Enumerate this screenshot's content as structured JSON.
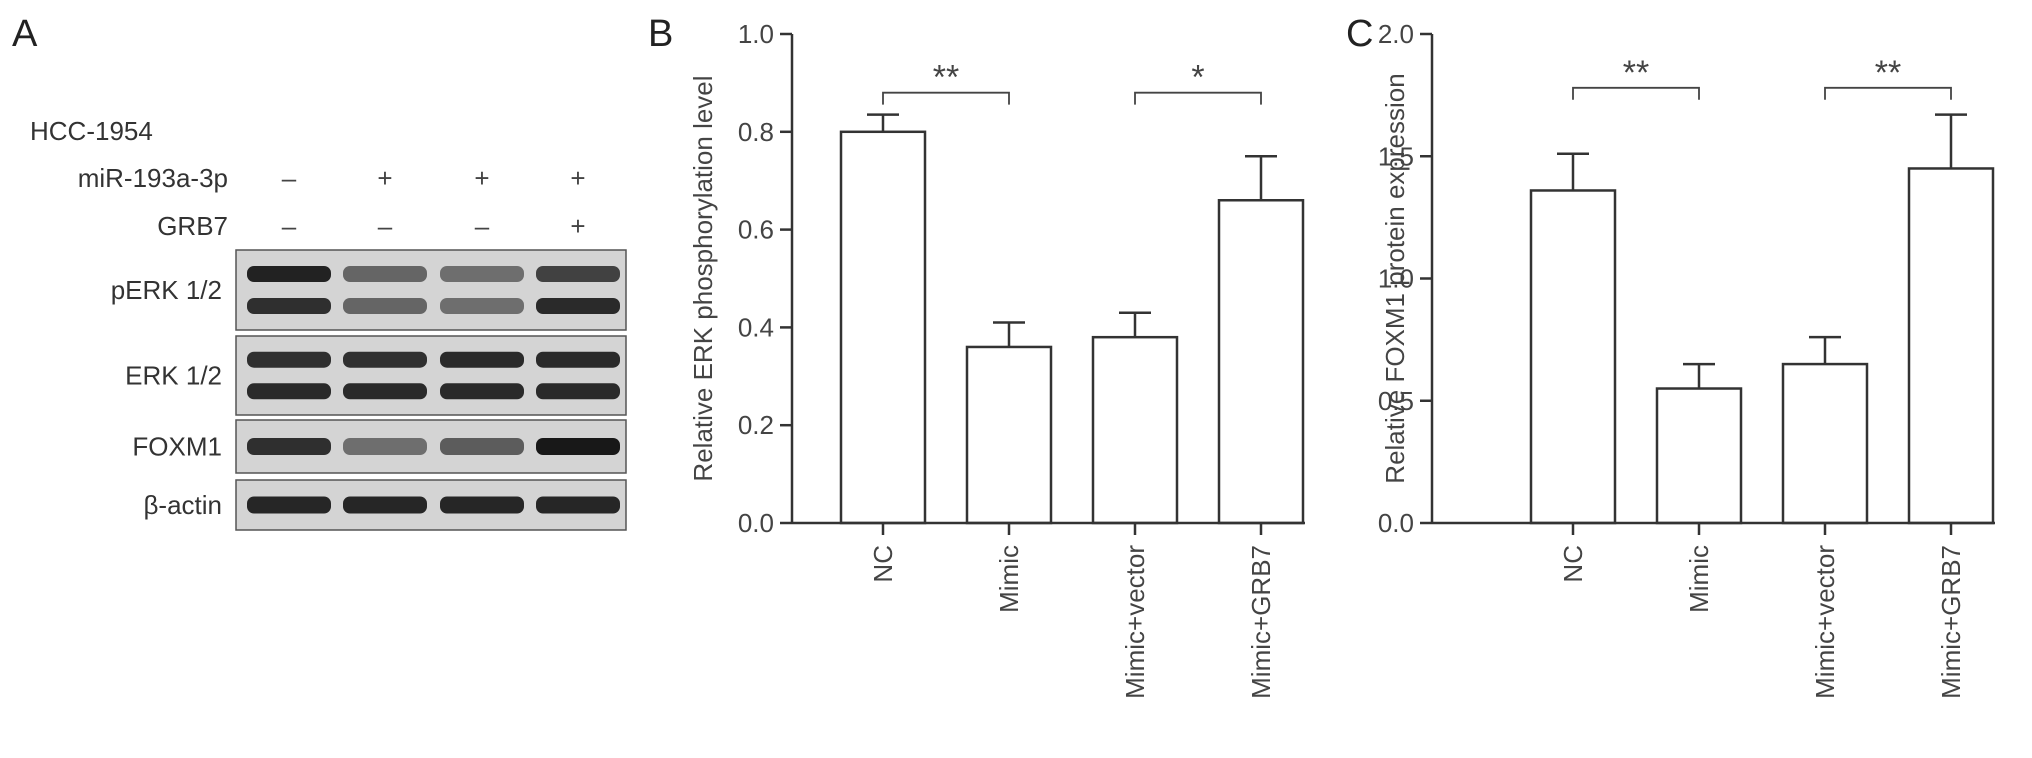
{
  "panel_a": {
    "letter": "A",
    "cell_line": "HCC-1954",
    "treatments": [
      {
        "name": "miR-193a-3p",
        "signs": [
          "–",
          "+",
          "+",
          "+"
        ]
      },
      {
        "name": "GRB7",
        "signs": [
          "–",
          "–",
          "–",
          "+"
        ]
      }
    ],
    "blots": [
      {
        "label": "pERK 1/2",
        "rows": 2,
        "intensity": [
          [
            0.92,
            0.55,
            0.5,
            0.75
          ],
          [
            0.85,
            0.55,
            0.5,
            0.88
          ]
        ]
      },
      {
        "label": "ERK 1/2",
        "rows": 2,
        "intensity": [
          [
            0.85,
            0.85,
            0.88,
            0.88
          ],
          [
            0.88,
            0.88,
            0.88,
            0.88
          ]
        ]
      },
      {
        "label": "FOXM1",
        "rows": 1,
        "intensity": [
          [
            0.85,
            0.5,
            0.6,
            0.98
          ]
        ]
      },
      {
        "label": "β-actin",
        "rows": 1,
        "intensity": [
          [
            0.9,
            0.9,
            0.9,
            0.9
          ]
        ]
      }
    ]
  },
  "chart_data": [
    {
      "type": "bar",
      "panel": "B",
      "categories": [
        "NC",
        "Mimic",
        "Mimic+vector",
        "Mimic+GRB7"
      ],
      "values": [
        0.8,
        0.36,
        0.38,
        0.66
      ],
      "errors": [
        0.035,
        0.05,
        0.05,
        0.09
      ],
      "ylabel": "Relative ERK phosphorylation level",
      "ylim": [
        0,
        1.0
      ],
      "yticks": [
        0.0,
        0.2,
        0.4,
        0.6,
        0.8,
        1.0
      ],
      "tick_format": 1,
      "significance": [
        {
          "from": 0,
          "to": 1,
          "label": "**",
          "y": 0.88
        },
        {
          "from": 2,
          "to": 3,
          "label": "*",
          "y": 0.88
        }
      ]
    },
    {
      "type": "bar",
      "panel": "C",
      "categories": [
        "NC",
        "Mimic",
        "Mimic+vector",
        "Mimic+GRB7"
      ],
      "values": [
        1.36,
        0.55,
        0.65,
        1.45
      ],
      "errors": [
        0.15,
        0.1,
        0.11,
        0.22
      ],
      "ylabel": "Relative FOXM1 protein expression",
      "ylim": [
        0,
        2.0
      ],
      "yticks": [
        0.0,
        0.5,
        1.0,
        1.5,
        2.0
      ],
      "tick_format": 1,
      "significance": [
        {
          "from": 0,
          "to": 1,
          "label": "**",
          "y": 1.78
        },
        {
          "from": 2,
          "to": 3,
          "label": "**",
          "y": 1.78
        }
      ]
    }
  ]
}
